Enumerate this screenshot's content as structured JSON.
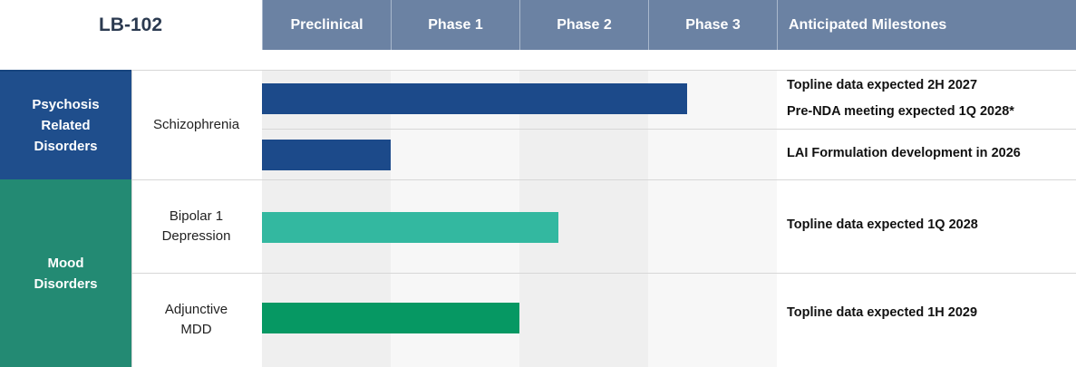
{
  "title": "LB-102",
  "phases": [
    "Preclinical",
    "Phase 1",
    "Phase 2",
    "Phase 3"
  ],
  "milestones_header": "Anticipated Milestones",
  "categories": [
    {
      "label_lines": [
        "Psychosis",
        "Related",
        "Disorders"
      ],
      "color": "#1f4e8c"
    },
    {
      "label_lines": [
        "Mood",
        "Disorders"
      ],
      "color": "#238a73"
    }
  ],
  "indications": [
    {
      "lines": [
        "Schizophrenia"
      ]
    },
    {
      "lines": [
        "Bipolar 1",
        "Depression"
      ]
    },
    {
      "lines": [
        "Adjunctive",
        "MDD"
      ]
    }
  ],
  "milestones": [
    "Topline data expected 2H 2027",
    "Pre-NDA meeting expected 1Q 2028*",
    "LAI Formulation development in 2026",
    "Topline data expected 1Q 2028",
    "Topline data expected 1H 2029"
  ],
  "colors": {
    "header": "#6b82a3",
    "psychosis": "#1f4e8c",
    "mood": "#238a73",
    "bar_schizophrenia": "#1c4a8a",
    "bar_bipolar": "#33b8a0",
    "bar_mdd": "#069863"
  },
  "chart_data": {
    "type": "bar",
    "orientation": "horizontal",
    "x_scale": "phase stage (0 = start of Preclinical, 4 = end of Phase 3)",
    "xlim": [
      0,
      4
    ],
    "categories": [
      "Schizophrenia",
      "Schizophrenia (LAI Formulation)",
      "Bipolar 1 Depression",
      "Adjunctive MDD"
    ],
    "values": [
      3.3,
      1.0,
      2.3,
      2.0
    ],
    "bar_colors": [
      "#1c4a8a",
      "#1c4a8a",
      "#33b8a0",
      "#069863"
    ]
  }
}
